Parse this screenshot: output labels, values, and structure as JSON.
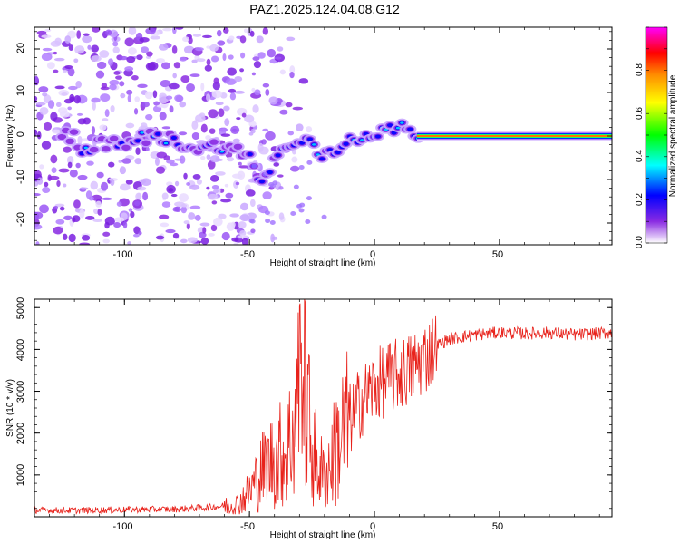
{
  "title": "PAZ1.2025.124.04.08.G12",
  "chart_data": [
    {
      "type": "heatmap",
      "xlabel": "Height of straight line (km)",
      "ylabel": "Frequency (Hz)",
      "xlim": [
        -136,
        95
      ],
      "ylim": [
        -25,
        25
      ],
      "xticks": [
        "-100",
        "-50",
        "0",
        "50"
      ],
      "yticks": [
        "-20",
        "-10",
        "0",
        "10",
        "20"
      ],
      "colorbar": {
        "label": "Normalized spectral amplitude",
        "range": [
          0,
          1
        ],
        "ticks": [
          "0.0",
          "0.2",
          "0.4",
          "0.6",
          "0.8"
        ],
        "colors": [
          "#ffffff",
          "#8a2be2",
          "#0000ff",
          "#00ffff",
          "#00ff00",
          "#ffff00",
          "#ff8c00",
          "#ff0000",
          "#ff00ff"
        ]
      },
      "ridge": {
        "x": [
          -120,
          -110,
          -100,
          -90,
          -80,
          -70,
          -60,
          -50,
          -45,
          -40,
          -35,
          -30,
          -25,
          -20,
          -15,
          -10,
          -5,
          0,
          5,
          10,
          15,
          20,
          30,
          50,
          70,
          95
        ],
        "y": [
          -3,
          -2,
          -2,
          0,
          -1,
          -3,
          -2,
          -5,
          -11,
          -5,
          -3,
          -1,
          -2,
          -5,
          -3,
          -1,
          0,
          1,
          1,
          2,
          1,
          0,
          0,
          0,
          0,
          0
        ]
      }
    },
    {
      "type": "line",
      "xlabel": "Height of straight line (km)",
      "ylabel": "SNR (10 * v/v)",
      "xlim": [
        -136,
        95
      ],
      "ylim": [
        0,
        5200
      ],
      "xticks": [
        "-100",
        "-50",
        "0",
        "50"
      ],
      "yticks": [
        "1000",
        "2000",
        "3000",
        "4000",
        "5000"
      ],
      "series": [
        {
          "color": "#e8221b",
          "x": [
            -136,
            -120,
            -100,
            -80,
            -65,
            -55,
            -50,
            -45,
            -40,
            -35,
            -30,
            -28,
            -25,
            -20,
            -15,
            -10,
            -5,
            0,
            5,
            10,
            15,
            20,
            25,
            30,
            35,
            40,
            50,
            60,
            70,
            80,
            95
          ],
          "y": [
            160,
            150,
            170,
            180,
            230,
            300,
            600,
            1100,
            1400,
            1600,
            2600,
            3200,
            1600,
            900,
            1700,
            2300,
            2800,
            3100,
            3300,
            3400,
            3550,
            3800,
            4100,
            4250,
            4300,
            4350,
            4400,
            4380,
            4400,
            4350,
            4400
          ]
        }
      ]
    }
  ]
}
